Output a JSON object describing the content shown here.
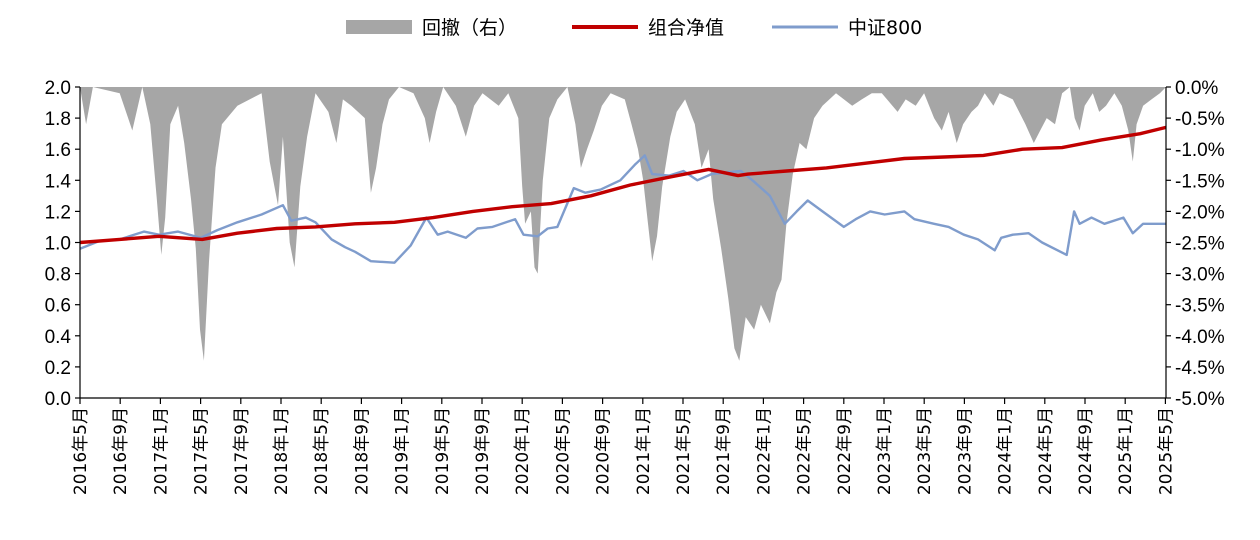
{
  "chart_data": {
    "type": "line",
    "legend": {
      "placement": "top-center"
    },
    "colors": {
      "drawdown": "#a6a6a6",
      "portfolio": "#c00000",
      "csi800": "#7f9ccc"
    },
    "yleft": {
      "ylim": [
        0,
        2.0
      ],
      "ticks": [
        "0.0",
        "0.2",
        "0.4",
        "0.6",
        "0.8",
        "1.0",
        "1.2",
        "1.4",
        "1.6",
        "1.8",
        "2.0"
      ]
    },
    "yright": {
      "ylim": [
        -5.0,
        0.0
      ],
      "ticks": [
        "-5.0%",
        "-4.5%",
        "-4.0%",
        "-3.5%",
        "-3.0%",
        "-2.5%",
        "-2.0%",
        "-1.5%",
        "-1.0%",
        "-0.5%",
        "0.0%"
      ]
    },
    "x_range": [
      "2016-05-01",
      "2025-07-20"
    ],
    "categories": [
      "2016年5月",
      "2016年9月",
      "2017年1月",
      "2017年5月",
      "2017年9月",
      "2018年1月",
      "2018年5月",
      "2018年9月",
      "2019年1月",
      "2019年5月",
      "2019年9月",
      "2020年1月",
      "2020年5月",
      "2020年9月",
      "2021年1月",
      "2021年5月",
      "2021年9月",
      "2022年1月",
      "2022年5月",
      "2022年9月",
      "2023年1月",
      "2023年5月",
      "2023年9月",
      "2024年1月",
      "2024年5月",
      "2024年9月",
      "2025年1月",
      "2025年5月"
    ],
    "series": [
      {
        "name": "回撤（右）",
        "type": "area",
        "axis": "right",
        "points": [
          [
            "2016-05-01",
            0
          ],
          [
            "2016-05-20",
            -0.6
          ],
          [
            "2016-06-10",
            0
          ],
          [
            "2016-09-01",
            -0.1
          ],
          [
            "2016-10-10",
            -0.7
          ],
          [
            "2016-11-10",
            0
          ],
          [
            "2016-12-05",
            -0.6
          ],
          [
            "2016-12-25",
            -1.8
          ],
          [
            "2017-01-08",
            -2.7
          ],
          [
            "2017-01-20",
            -2.1
          ],
          [
            "2017-02-05",
            -0.6
          ],
          [
            "2017-03-01",
            -0.3
          ],
          [
            "2017-03-20",
            -0.9
          ],
          [
            "2017-04-10",
            -1.8
          ],
          [
            "2017-04-25",
            -2.6
          ],
          [
            "2017-05-08",
            -3.9
          ],
          [
            "2017-05-20",
            -4.4
          ],
          [
            "2017-06-05",
            -2.8
          ],
          [
            "2017-06-25",
            -1.3
          ],
          [
            "2017-07-15",
            -0.6
          ],
          [
            "2017-09-01",
            -0.3
          ],
          [
            "2017-11-15",
            -0.1
          ],
          [
            "2017-12-10",
            -1.2
          ],
          [
            "2018-01-05",
            -1.9
          ],
          [
            "2018-01-20",
            -0.8
          ],
          [
            "2018-02-10",
            -2.5
          ],
          [
            "2018-02-25",
            -2.9
          ],
          [
            "2018-03-15",
            -1.6
          ],
          [
            "2018-04-05",
            -0.8
          ],
          [
            "2018-05-01",
            -0.1
          ],
          [
            "2018-06-10",
            -0.4
          ],
          [
            "2018-07-05",
            -0.9
          ],
          [
            "2018-07-25",
            -0.2
          ],
          [
            "2018-08-20",
            -0.3
          ],
          [
            "2018-10-01",
            -0.5
          ],
          [
            "2018-10-20",
            -1.7
          ],
          [
            "2018-11-05",
            -1.3
          ],
          [
            "2018-11-25",
            -0.6
          ],
          [
            "2018-12-15",
            -0.2
          ],
          [
            "2019-01-15",
            0
          ],
          [
            "2019-03-01",
            -0.1
          ],
          [
            "2019-04-05",
            -0.5
          ],
          [
            "2019-04-20",
            -0.9
          ],
          [
            "2019-05-10",
            -0.4
          ],
          [
            "2019-06-01",
            0
          ],
          [
            "2019-07-10",
            -0.3
          ],
          [
            "2019-08-10",
            -0.8
          ],
          [
            "2019-09-05",
            -0.3
          ],
          [
            "2019-10-01",
            -0.1
          ],
          [
            "2019-11-20",
            -0.3
          ],
          [
            "2019-12-20",
            -0.1
          ],
          [
            "2020-01-20",
            -0.5
          ],
          [
            "2020-02-01",
            -1.6
          ],
          [
            "2020-02-10",
            -2.2
          ],
          [
            "2020-02-28",
            -2.0
          ],
          [
            "2020-03-10",
            -2.9
          ],
          [
            "2020-03-20",
            -3.0
          ],
          [
            "2020-04-05",
            -1.5
          ],
          [
            "2020-04-25",
            -0.5
          ],
          [
            "2020-05-20",
            -0.2
          ],
          [
            "2020-06-20",
            0
          ],
          [
            "2020-07-15",
            -0.6
          ],
          [
            "2020-08-01",
            -1.3
          ],
          [
            "2020-08-20",
            -1.0
          ],
          [
            "2020-09-10",
            -0.7
          ],
          [
            "2020-10-05",
            -0.3
          ],
          [
            "2020-11-01",
            -0.1
          ],
          [
            "2020-12-15",
            -0.2
          ],
          [
            "2021-01-05",
            -0.6
          ],
          [
            "2021-01-25",
            -1.0
          ],
          [
            "2021-02-10",
            -1.5
          ],
          [
            "2021-02-25",
            -2.2
          ],
          [
            "2021-03-10",
            -2.8
          ],
          [
            "2021-03-25",
            -2.4
          ],
          [
            "2021-04-10",
            -1.6
          ],
          [
            "2021-05-05",
            -0.8
          ],
          [
            "2021-05-25",
            -0.4
          ],
          [
            "2021-06-20",
            -0.2
          ],
          [
            "2021-07-20",
            -0.6
          ],
          [
            "2021-08-10",
            -1.3
          ],
          [
            "2021-09-01",
            -1.0
          ],
          [
            "2021-09-15",
            -1.8
          ],
          [
            "2021-10-10",
            -2.6
          ],
          [
            "2021-11-01",
            -3.4
          ],
          [
            "2021-11-20",
            -4.2
          ],
          [
            "2021-12-05",
            -4.4
          ],
          [
            "2021-12-25",
            -3.7
          ],
          [
            "2022-01-20",
            -3.9
          ],
          [
            "2022-02-10",
            -3.5
          ],
          [
            "2022-03-10",
            -3.8
          ],
          [
            "2022-03-30",
            -3.3
          ],
          [
            "2022-04-15",
            -3.1
          ],
          [
            "2022-04-30",
            -2.2
          ],
          [
            "2022-05-20",
            -1.4
          ],
          [
            "2022-06-10",
            -0.9
          ],
          [
            "2022-07-01",
            -1.0
          ],
          [
            "2022-07-25",
            -0.5
          ],
          [
            "2022-08-20",
            -0.3
          ],
          [
            "2022-10-01",
            -0.1
          ],
          [
            "2022-11-20",
            -0.3
          ],
          [
            "2022-12-20",
            -0.2
          ],
          [
            "2023-01-20",
            -0.1
          ],
          [
            "2023-02-20",
            -0.1
          ],
          [
            "2023-04-10",
            -0.4
          ],
          [
            "2023-05-05",
            -0.2
          ],
          [
            "2023-06-05",
            -0.3
          ],
          [
            "2023-07-01",
            -0.1
          ],
          [
            "2023-08-01",
            -0.5
          ],
          [
            "2023-08-25",
            -0.7
          ],
          [
            "2023-09-15",
            -0.4
          ],
          [
            "2023-10-10",
            -0.9
          ],
          [
            "2023-10-30",
            -0.6
          ],
          [
            "2023-11-25",
            -0.4
          ],
          [
            "2023-12-15",
            -0.3
          ],
          [
            "2024-01-05",
            -0.1
          ],
          [
            "2024-02-01",
            -0.3
          ],
          [
            "2024-02-20",
            -0.1
          ],
          [
            "2024-04-01",
            -0.2
          ],
          [
            "2024-05-10",
            -0.6
          ],
          [
            "2024-06-05",
            -0.9
          ],
          [
            "2024-06-25",
            -0.7
          ],
          [
            "2024-07-15",
            -0.5
          ],
          [
            "2024-08-10",
            -0.6
          ],
          [
            "2024-09-01",
            -0.1
          ],
          [
            "2024-09-25",
            0
          ],
          [
            "2024-10-10",
            -0.5
          ],
          [
            "2024-10-25",
            -0.7
          ],
          [
            "2024-11-10",
            -0.3
          ],
          [
            "2024-12-05",
            -0.1
          ],
          [
            "2024-12-25",
            -0.4
          ],
          [
            "2025-01-15",
            -0.3
          ],
          [
            "2025-02-10",
            -0.1
          ],
          [
            "2025-03-05",
            -0.3
          ],
          [
            "2025-03-25",
            -0.7
          ],
          [
            "2025-04-08",
            -1.2
          ],
          [
            "2025-04-20",
            -0.6
          ],
          [
            "2025-05-10",
            -0.3
          ],
          [
            "2025-06-05",
            -0.2
          ],
          [
            "2025-07-01",
            -0.1
          ],
          [
            "2025-07-20",
            0
          ]
        ]
      },
      {
        "name": "组合净值",
        "type": "line",
        "axis": "left",
        "points": [
          [
            "2016-05-01",
            1.0
          ],
          [
            "2016-09-01",
            1.02
          ],
          [
            "2017-01-01",
            1.04
          ],
          [
            "2017-05-15",
            1.02
          ],
          [
            "2017-09-01",
            1.06
          ],
          [
            "2018-01-01",
            1.09
          ],
          [
            "2018-05-01",
            1.1
          ],
          [
            "2018-09-01",
            1.12
          ],
          [
            "2019-01-01",
            1.13
          ],
          [
            "2019-05-01",
            1.16
          ],
          [
            "2019-09-01",
            1.2
          ],
          [
            "2020-01-01",
            1.23
          ],
          [
            "2020-05-01",
            1.25
          ],
          [
            "2020-09-01",
            1.3
          ],
          [
            "2021-01-01",
            1.37
          ],
          [
            "2021-05-01",
            1.42
          ],
          [
            "2021-09-01",
            1.47
          ],
          [
            "2021-12-01",
            1.43
          ],
          [
            "2022-01-01",
            1.44
          ],
          [
            "2022-05-01",
            1.46
          ],
          [
            "2022-09-01",
            1.48
          ],
          [
            "2023-01-01",
            1.51
          ],
          [
            "2023-05-01",
            1.54
          ],
          [
            "2023-09-01",
            1.55
          ],
          [
            "2024-01-01",
            1.56
          ],
          [
            "2024-05-01",
            1.6
          ],
          [
            "2024-09-01",
            1.61
          ],
          [
            "2025-01-01",
            1.66
          ],
          [
            "2025-05-01",
            1.7
          ],
          [
            "2025-07-20",
            1.74
          ]
        ]
      },
      {
        "name": "中证800",
        "type": "line",
        "axis": "left",
        "points": [
          [
            "2016-05-01",
            0.96
          ],
          [
            "2016-07-01",
            1.01
          ],
          [
            "2016-09-01",
            1.02
          ],
          [
            "2016-11-15",
            1.07
          ],
          [
            "2017-01-01",
            1.05
          ],
          [
            "2017-03-01",
            1.07
          ],
          [
            "2017-05-10",
            1.03
          ],
          [
            "2017-07-01",
            1.08
          ],
          [
            "2017-09-01",
            1.13
          ],
          [
            "2017-11-15",
            1.18
          ],
          [
            "2018-01-20",
            1.24
          ],
          [
            "2018-02-15",
            1.14
          ],
          [
            "2018-04-01",
            1.16
          ],
          [
            "2018-05-01",
            1.13
          ],
          [
            "2018-06-20",
            1.02
          ],
          [
            "2018-08-01",
            0.97
          ],
          [
            "2018-09-01",
            0.94
          ],
          [
            "2018-10-20",
            0.88
          ],
          [
            "2019-01-01",
            0.87
          ],
          [
            "2019-02-20",
            0.98
          ],
          [
            "2019-04-10",
            1.16
          ],
          [
            "2019-05-15",
            1.05
          ],
          [
            "2019-06-15",
            1.07
          ],
          [
            "2019-08-10",
            1.03
          ],
          [
            "2019-09-15",
            1.09
          ],
          [
            "2019-11-01",
            1.1
          ],
          [
            "2020-01-10",
            1.15
          ],
          [
            "2020-02-05",
            1.05
          ],
          [
            "2020-03-20",
            1.04
          ],
          [
            "2020-04-20",
            1.09
          ],
          [
            "2020-05-20",
            1.1
          ],
          [
            "2020-07-10",
            1.35
          ],
          [
            "2020-08-15",
            1.32
          ],
          [
            "2020-10-01",
            1.34
          ],
          [
            "2020-12-01",
            1.4
          ],
          [
            "2021-01-15",
            1.5
          ],
          [
            "2021-02-15",
            1.56
          ],
          [
            "2021-03-10",
            1.44
          ],
          [
            "2021-05-01",
            1.43
          ],
          [
            "2021-06-15",
            1.46
          ],
          [
            "2021-07-28",
            1.4
          ],
          [
            "2021-09-10",
            1.44
          ],
          [
            "2021-12-10",
            1.46
          ],
          [
            "2022-01-15",
            1.4
          ],
          [
            "2022-03-10",
            1.3
          ],
          [
            "2022-04-25",
            1.12
          ],
          [
            "2022-06-01",
            1.2
          ],
          [
            "2022-07-05",
            1.27
          ],
          [
            "2022-08-20",
            1.2
          ],
          [
            "2022-10-25",
            1.1
          ],
          [
            "2022-12-01",
            1.15
          ],
          [
            "2023-01-15",
            1.2
          ],
          [
            "2023-03-01",
            1.18
          ],
          [
            "2023-05-01",
            1.2
          ],
          [
            "2023-06-01",
            1.15
          ],
          [
            "2023-08-01",
            1.12
          ],
          [
            "2023-09-15",
            1.1
          ],
          [
            "2023-11-01",
            1.05
          ],
          [
            "2023-12-15",
            1.02
          ],
          [
            "2024-02-05",
            0.95
          ],
          [
            "2024-02-25",
            1.03
          ],
          [
            "2024-04-01",
            1.05
          ],
          [
            "2024-05-20",
            1.06
          ],
          [
            "2024-07-01",
            1.0
          ],
          [
            "2024-09-15",
            0.92
          ],
          [
            "2024-10-08",
            1.2
          ],
          [
            "2024-10-25",
            1.12
          ],
          [
            "2024-12-01",
            1.16
          ],
          [
            "2025-01-10",
            1.12
          ],
          [
            "2025-03-10",
            1.16
          ],
          [
            "2025-04-08",
            1.06
          ],
          [
            "2025-05-10",
            1.12
          ],
          [
            "2025-07-20",
            1.12
          ]
        ]
      }
    ]
  }
}
